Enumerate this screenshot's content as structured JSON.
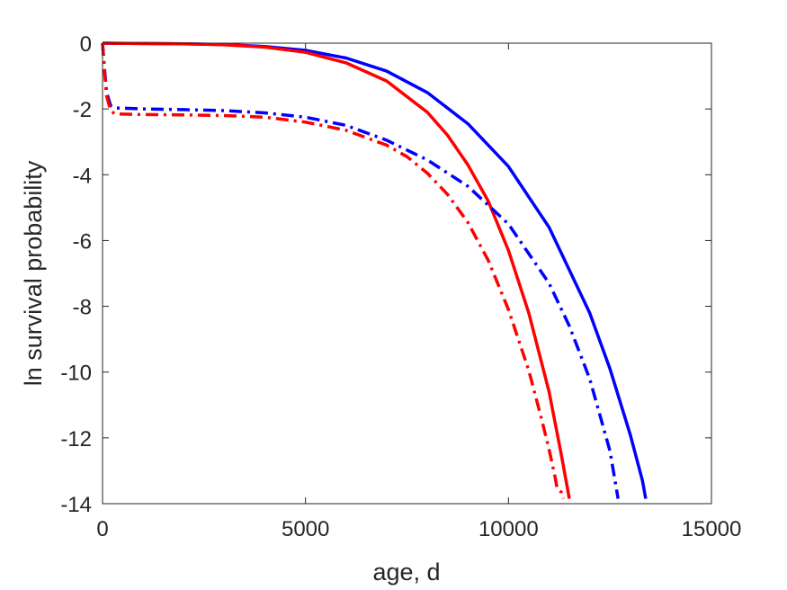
{
  "chart_data": {
    "type": "line",
    "title": "",
    "xlabel": "age, d",
    "ylabel": "ln survival probability",
    "xlim": [
      0,
      15000
    ],
    "ylim": [
      -14,
      0
    ],
    "xticks": [
      0,
      5000,
      10000,
      15000
    ],
    "yticks": [
      0,
      -2,
      -4,
      -6,
      -8,
      -10,
      -12,
      -14
    ],
    "xtick_labels": [
      "0",
      "5000",
      "10000",
      "15000"
    ],
    "ytick_labels": [
      "0",
      "-2",
      "-4",
      "-6",
      "-8",
      "-10",
      "-12",
      "-14"
    ],
    "grid": false,
    "legend": "none",
    "series": [
      {
        "color": "#0000ff",
        "style": "solid",
        "x": [
          0,
          2000,
          3000,
          4000,
          5000,
          6000,
          7000,
          8000,
          9000,
          10000,
          11000,
          12000,
          12500,
          13000,
          13300,
          13380
        ],
        "y": [
          0,
          -0.02,
          -0.04,
          -0.1,
          -0.22,
          -0.45,
          -0.85,
          -1.5,
          -2.45,
          -3.75,
          -5.6,
          -8.2,
          -9.9,
          -11.9,
          -13.3,
          -13.85
        ]
      },
      {
        "color": "#ff0000",
        "style": "solid",
        "x": [
          0,
          2000,
          3000,
          4000,
          5000,
          6000,
          7000,
          8000,
          8500,
          9000,
          9500,
          10000,
          10500,
          11000,
          11300,
          11500
        ],
        "y": [
          0,
          -0.02,
          -0.05,
          -0.12,
          -0.28,
          -0.6,
          -1.15,
          -2.1,
          -2.8,
          -3.7,
          -4.8,
          -6.3,
          -8.2,
          -10.6,
          -12.5,
          -13.85
        ]
      },
      {
        "color": "#0000ff",
        "style": "dashdot",
        "x": [
          0,
          50,
          100,
          200,
          300,
          1000,
          2000,
          3000,
          4000,
          5000,
          6000,
          7000,
          8000,
          9000,
          10000,
          11000,
          11500,
          12000,
          12500,
          12700
        ],
        "y": [
          0,
          -0.8,
          -1.5,
          -1.9,
          -1.97,
          -2.0,
          -2.02,
          -2.05,
          -2.12,
          -2.25,
          -2.5,
          -2.95,
          -3.55,
          -4.35,
          -5.5,
          -7.3,
          -8.6,
          -10.2,
          -12.4,
          -13.85
        ]
      },
      {
        "color": "#ff0000",
        "style": "dashdot",
        "x": [
          0,
          50,
          100,
          200,
          300,
          1000,
          2000,
          3000,
          4000,
          5000,
          6000,
          7000,
          7500,
          8000,
          8500,
          9000,
          9500,
          10000,
          10500,
          10800,
          11000,
          11150,
          11200,
          11300,
          11350
        ],
        "y": [
          0,
          -0.9,
          -1.6,
          -2.05,
          -2.15,
          -2.17,
          -2.18,
          -2.2,
          -2.25,
          -2.4,
          -2.65,
          -3.1,
          -3.45,
          -3.95,
          -4.6,
          -5.45,
          -6.6,
          -8.1,
          -9.95,
          -11.35,
          -12.35,
          -13.2,
          -13.55,
          -13.65,
          -13.85
        ]
      }
    ]
  }
}
